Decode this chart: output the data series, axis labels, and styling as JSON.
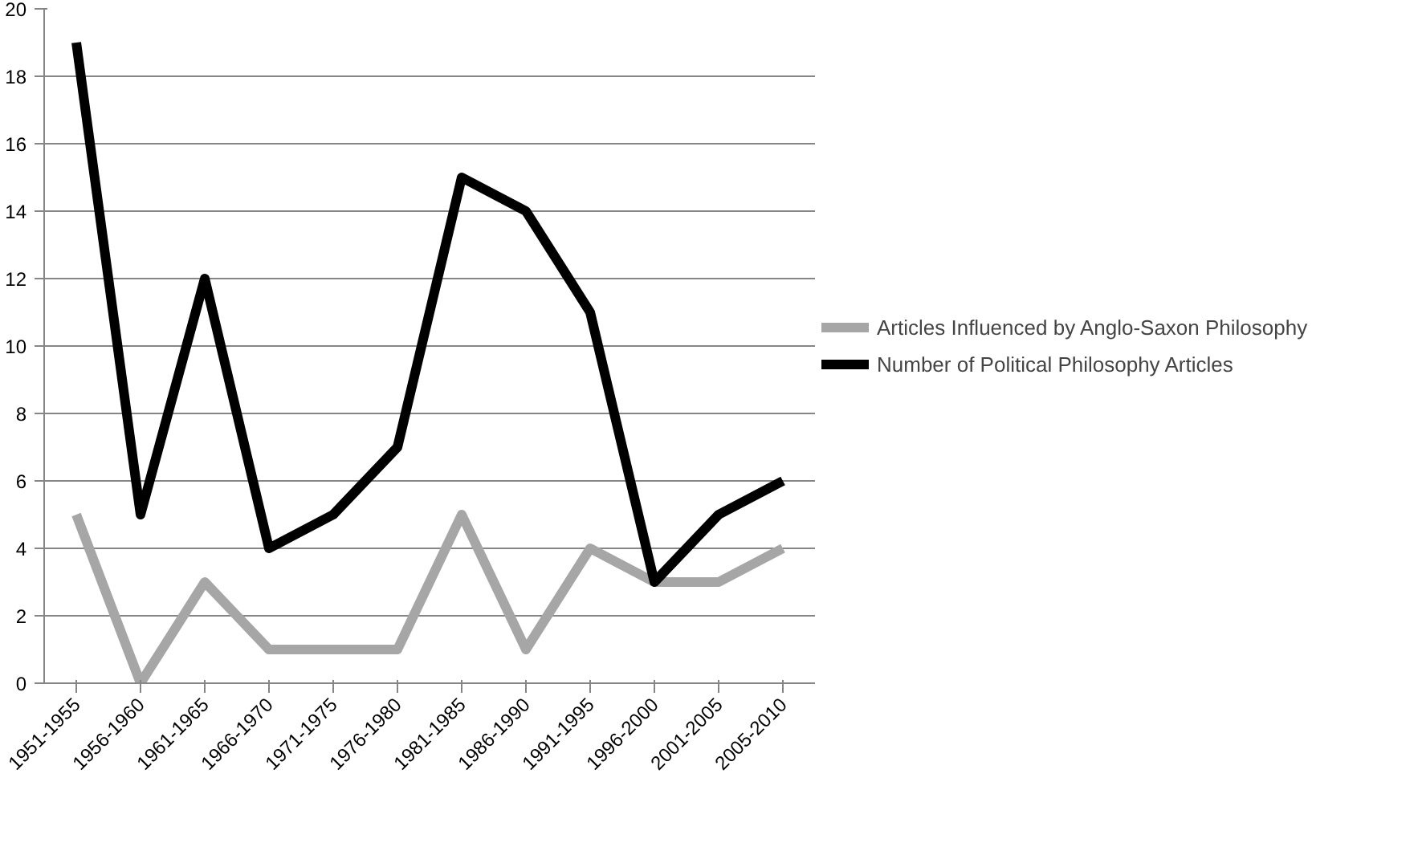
{
  "chart_data": {
    "type": "line",
    "categories": [
      "1951-1955",
      "1956-1960",
      "1961-1965",
      "1966-1970",
      "1971-1975",
      "1976-1980",
      "1981-1985",
      "1986-1990",
      "1991-1995",
      "1996-2000",
      "2001-2005",
      "2005-2010"
    ],
    "series": [
      {
        "name": "Articles Influenced by Anglo-Saxon Philosophy",
        "color": "#a6a6a6",
        "values": [
          5,
          0,
          3,
          1,
          1,
          1,
          5,
          1,
          4,
          3,
          3,
          4
        ]
      },
      {
        "name": "Number of Political Philosophy Articles",
        "color": "#000000",
        "values": [
          19,
          5,
          12,
          4,
          5,
          7,
          15,
          14,
          11,
          3,
          5,
          6
        ]
      }
    ],
    "ylim": [
      0,
      20
    ],
    "yticks": [
      0,
      2,
      4,
      6,
      8,
      10,
      12,
      14,
      16,
      18,
      20
    ],
    "grid": "y",
    "legend": "right",
    "marker": "none",
    "line_style": "solid"
  }
}
